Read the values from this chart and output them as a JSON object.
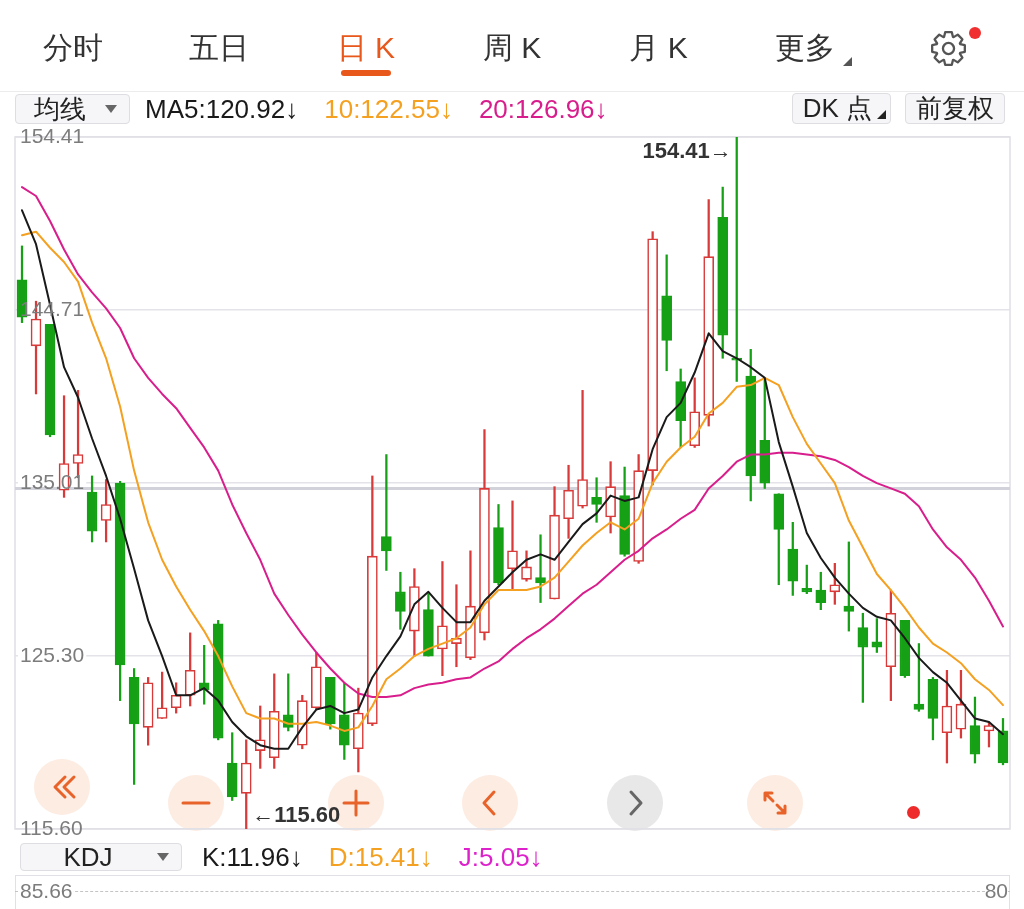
{
  "chart_data": [
    {
      "type": "other",
      "categories": [
        "分时",
        "五日",
        "日 K",
        "周 K",
        "月 K",
        "更多"
      ]
    },
    {
      "type": "candlestick",
      "legend_title": "均线",
      "legend": "top left",
      "marker": "none",
      "grid": "y",
      "tick_labels": "y",
      "categories": [
        null,
        null,
        null,
        null,
        null,
        null,
        null,
        null,
        null,
        null,
        null,
        null,
        null,
        null,
        null,
        null,
        null,
        null,
        null,
        null,
        null,
        null,
        null,
        null,
        null,
        null,
        null,
        null,
        null,
        null,
        null,
        null,
        null,
        null,
        null,
        null,
        null,
        null,
        null,
        null,
        null,
        null,
        null,
        null,
        null,
        null,
        null,
        null,
        null,
        null,
        null,
        null,
        null,
        null,
        null,
        null,
        null,
        null,
        null,
        null,
        null,
        null,
        null,
        null,
        null,
        null,
        null,
        null,
        null,
        null,
        null
      ],
      "ohlc": [
        [
          146.4,
          148.3,
          144.0,
          144.3
        ],
        [
          142.7,
          145.2,
          140.0,
          144.2
        ],
        [
          143.9,
          143.9,
          137.6,
          137.7
        ],
        [
          134.6,
          139.9,
          134.2,
          136.1
        ],
        [
          136.1,
          140.2,
          135.3,
          136.6
        ],
        [
          134.5,
          135.4,
          131.7,
          132.3
        ],
        [
          132.9,
          135.2,
          131.7,
          133.8
        ],
        [
          135.0,
          135.1,
          122.8,
          124.8
        ],
        [
          124.1,
          124.6,
          118.1,
          121.5
        ],
        [
          121.3,
          124.1,
          120.3,
          123.8
        ],
        [
          121.8,
          124.4,
          121.8,
          122.4
        ],
        [
          122.4,
          123.8,
          122.1,
          123.1
        ],
        [
          123.1,
          126.6,
          122.5,
          124.5
        ],
        [
          123.8,
          125.9,
          122.6,
          123.4
        ],
        [
          127.1,
          127.3,
          120.6,
          120.7
        ],
        [
          119.3,
          121.0,
          117.2,
          117.4
        ],
        [
          117.6,
          120.6,
          115.6,
          119.3
        ],
        [
          120.0,
          122.5,
          119.0,
          120.6
        ],
        [
          119.6,
          124.3,
          119.0,
          122.2
        ],
        [
          122.0,
          124.3,
          121.1,
          121.3
        ],
        [
          120.3,
          123.1,
          120.1,
          122.8
        ],
        [
          122.4,
          125.5,
          122.3,
          124.7
        ],
        [
          124.1,
          124.1,
          121.2,
          121.5
        ],
        [
          122.0,
          123.8,
          119.5,
          120.3
        ],
        [
          120.1,
          123.5,
          118.8,
          122.1
        ],
        [
          121.5,
          135.4,
          121.4,
          130.9
        ],
        [
          132.0,
          136.6,
          130.1,
          131.2
        ],
        [
          128.9,
          130.0,
          126.8,
          127.8
        ],
        [
          126.7,
          130.2,
          125.3,
          129.2
        ],
        [
          127.9,
          128.8,
          125.3,
          125.3
        ],
        [
          125.7,
          130.6,
          124.2,
          127.0
        ],
        [
          126.0,
          129.3,
          124.7,
          126.3
        ],
        [
          125.2,
          131.2,
          125.1,
          128.1
        ],
        [
          126.6,
          138.0,
          126.2,
          134.7
        ],
        [
          132.5,
          133.8,
          129.3,
          129.4
        ],
        [
          130.2,
          134.0,
          129.0,
          131.2
        ],
        [
          129.6,
          131.2,
          129.5,
          130.3
        ],
        [
          129.7,
          132.1,
          128.3,
          129.4
        ],
        [
          128.5,
          134.8,
          128.5,
          133.2
        ],
        [
          133.0,
          136.0,
          131.9,
          134.6
        ],
        [
          133.7,
          140.2,
          133.6,
          135.2
        ],
        [
          134.2,
          135.3,
          132.8,
          133.8
        ],
        [
          133.1,
          136.2,
          132.2,
          134.8
        ],
        [
          134.3,
          135.9,
          130.9,
          131.0
        ],
        [
          130.6,
          136.6,
          130.5,
          135.7
        ],
        [
          135.7,
          149.1,
          134.9,
          148.7
        ],
        [
          145.5,
          147.8,
          141.3,
          143.0
        ],
        [
          140.7,
          141.4,
          137.0,
          138.5
        ],
        [
          137.1,
          140.9,
          137.0,
          139.0
        ],
        [
          138.8,
          150.9,
          138.2,
          147.7
        ],
        [
          149.9,
          151.6,
          142.0,
          143.3
        ],
        [
          142.0,
          154.41,
          140.7,
          141.9
        ],
        [
          141.0,
          142.5,
          134.0,
          135.4
        ],
        [
          137.4,
          140.8,
          134.7,
          135.0
        ],
        [
          134.4,
          134.4,
          129.3,
          132.4
        ],
        [
          131.3,
          132.8,
          128.7,
          129.5
        ],
        [
          129.1,
          130.4,
          128.8,
          128.9
        ],
        [
          129.0,
          130.0,
          127.9,
          128.3
        ],
        [
          128.9,
          130.5,
          128.2,
          129.3
        ],
        [
          128.1,
          131.7,
          126.7,
          127.8
        ],
        [
          126.9,
          127.7,
          122.7,
          125.8
        ],
        [
          126.1,
          127.4,
          125.5,
          125.8
        ],
        [
          124.7,
          129.0,
          122.8,
          127.7
        ],
        [
          127.3,
          127.3,
          124.1,
          124.2
        ],
        [
          122.6,
          126.0,
          122.2,
          122.3
        ],
        [
          124.0,
          124.1,
          120.6,
          121.8
        ],
        [
          121.0,
          124.5,
          119.3,
          122.5
        ],
        [
          121.2,
          124.5,
          120.7,
          122.6
        ],
        [
          121.4,
          123.0,
          119.3,
          119.8
        ],
        [
          121.1,
          121.6,
          120.2,
          121.4
        ],
        [
          121.1,
          121.8,
          119.2,
          119.3
        ]
      ],
      "colors": [
        "#15a015",
        "#d83a3a",
        "#15a015",
        "#d83a3a",
        "#d83a3a",
        "#15a015",
        "#d83a3a",
        "#15a015",
        "#15a015",
        "#d83a3a",
        "#d83a3a",
        "#d83a3a",
        "#d83a3a",
        "#15a015",
        "#15a015",
        "#15a015",
        "#d83a3a",
        "#d83a3a",
        "#d83a3a",
        "#15a015",
        "#d83a3a",
        "#d83a3a",
        "#15a015",
        "#15a015",
        "#d83a3a",
        "#d83a3a",
        "#15a015",
        "#15a015",
        "#d83a3a",
        "#15a015",
        "#d83a3a",
        "#d83a3a",
        "#d83a3a",
        "#d83a3a",
        "#15a015",
        "#d83a3a",
        "#d83a3a",
        "#15a015",
        "#d83a3a",
        "#d83a3a",
        "#d83a3a",
        "#15a015",
        "#d83a3a",
        "#15a015",
        "#d83a3a",
        "#d83a3a",
        "#15a015",
        "#15a015",
        "#d83a3a",
        "#d83a3a",
        "#15a015",
        "#15a015",
        "#15a015",
        "#15a015",
        "#15a015",
        "#15a015",
        "#15a015",
        "#15a015",
        "#d83a3a",
        "#15a015",
        "#15a015",
        "#15a015",
        "#d83a3a",
        "#15a015",
        "#15a015",
        "#15a015",
        "#d83a3a",
        "#d83a3a",
        "#15a015",
        "#d83a3a",
        "#15a015"
      ],
      "series": [
        {
          "type": "line",
          "name": "MA5:120.92↓",
          "color": "#1a1a1a",
          "values": [
            150.3,
            148.4,
            145.0,
            141.5,
            139.8,
            137.5,
            135.4,
            133.0,
            130.2,
            127.3,
            125.3,
            123.1,
            123.1,
            123.5,
            122.8,
            121.6,
            120.8,
            120.3,
            120.1,
            120.1,
            121.3,
            122.3,
            122.5,
            122.1,
            122.3,
            124.1,
            125.3,
            126.4,
            128.2,
            128.9,
            128.0,
            127.2,
            127.2,
            128.4,
            129.2,
            130.0,
            130.7,
            131.0,
            130.7,
            131.7,
            132.7,
            133.3,
            134.3,
            134.0,
            134.2,
            136.9,
            138.7,
            139.5,
            141.2,
            143.4,
            142.4,
            142.0,
            141.5,
            140.9,
            137.3,
            134.8,
            132.2,
            130.8,
            129.7,
            128.8,
            128.0,
            127.5,
            127.3,
            126.3,
            125.2,
            124.4,
            123.8,
            122.8,
            121.8,
            121.6,
            120.92
          ]
        },
        {
          "type": "line",
          "name": "10:122.55↓",
          "color": "#f4a020",
          "values": [
            148.9,
            149.1,
            148.2,
            147.4,
            146.3,
            144.0,
            142.0,
            139.3,
            135.7,
            132.8,
            130.7,
            129.2,
            127.9,
            126.7,
            125.3,
            123.6,
            122.1,
            121.8,
            121.8,
            121.5,
            121.5,
            121.6,
            121.4,
            121.1,
            121.3,
            122.5,
            124.0,
            124.6,
            125.3,
            125.7,
            126.0,
            126.3,
            126.9,
            128.2,
            129.0,
            129.0,
            129.0,
            129.2,
            129.7,
            130.6,
            131.5,
            132.2,
            132.8,
            132.4,
            133.0,
            135.0,
            136.2,
            137.0,
            137.6,
            138.9,
            139.5,
            140.4,
            140.5,
            140.9,
            140.5,
            138.7,
            137.2,
            136.1,
            135.0,
            132.9,
            131.4,
            129.9,
            129.0,
            128.0,
            126.9,
            126.0,
            125.5,
            124.9,
            124.0,
            123.4,
            122.55
          ]
        },
        {
          "type": "line",
          "name": "20:126.96↓",
          "color": "#d81e8c",
          "values": [
            151.6,
            151.1,
            149.7,
            148.1,
            146.7,
            145.7,
            144.8,
            143.7,
            142.0,
            140.9,
            140.0,
            139.2,
            138.1,
            137.0,
            135.7,
            133.8,
            132.2,
            130.7,
            128.8,
            127.6,
            126.5,
            125.5,
            124.6,
            123.8,
            123.2,
            123.0,
            123.0,
            123.1,
            123.5,
            123.7,
            123.8,
            124.0,
            124.1,
            124.6,
            125.0,
            125.7,
            126.3,
            126.8,
            127.4,
            128.1,
            128.8,
            129.3,
            130.0,
            130.7,
            131.2,
            131.9,
            132.4,
            133.0,
            133.5,
            134.7,
            135.4,
            136.2,
            136.6,
            136.6,
            136.7,
            136.7,
            136.6,
            136.5,
            136.3,
            135.9,
            135.4,
            135.0,
            134.7,
            134.4,
            133.7,
            132.4,
            131.4,
            130.7,
            129.7,
            128.4,
            126.96
          ]
        }
      ],
      "ylim": [
        115.6,
        154.41
      ],
      "yticks": [
        154.41,
        144.71,
        135.01,
        {
          "value": 125.3,
          "label": "125.30"
        },
        {
          "value": 115.6,
          "label": "115.60"
        }
      ],
      "ref_lines": [
        {
          "axis": "y",
          "value": 134.7,
          "color": "#d2d3da"
        }
      ],
      "annotations": [
        "154.41→",
        "←115.60",
        "DK 点",
        "前复权"
      ]
    },
    {
      "type": "other",
      "title": "KDJ",
      "categories": [
        "K:11.96↓",
        "D:15.41↓",
        "J:5.05↓"
      ],
      "colors": [
        "#1a1a1a",
        "#f4a020",
        "#dd22cc"
      ],
      "annotations": [
        "85.66",
        "80"
      ]
    }
  ]
}
